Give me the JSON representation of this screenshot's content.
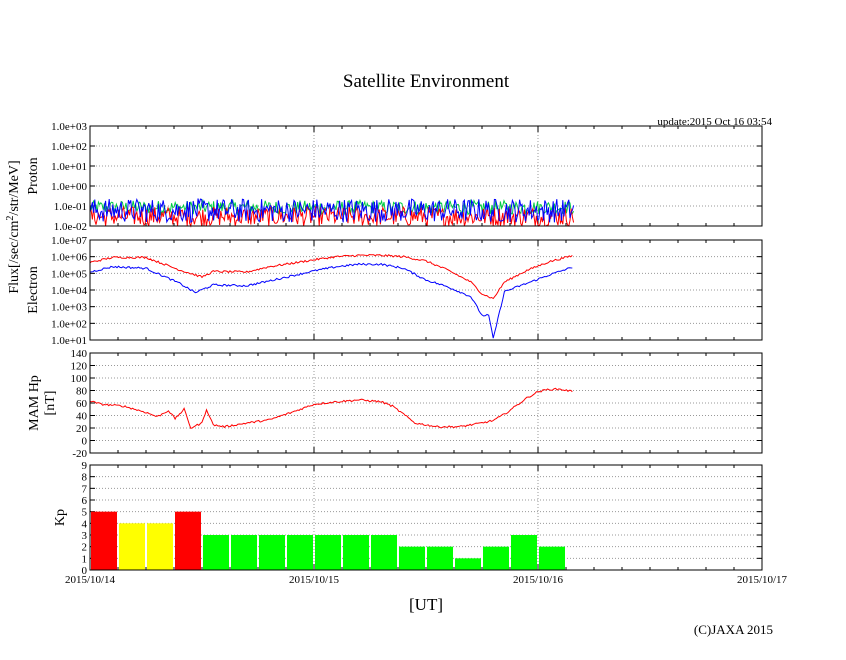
{
  "title": "Satellite Environment",
  "update_label": "update:2015 Oct 16 03:54",
  "copyright": "(C)JAXA 2015",
  "x_axis": {
    "label": "[UT]",
    "ticks": [
      "2015/10/14",
      "2015/10/15",
      "2015/10/16",
      "2015/10/17"
    ]
  },
  "shared_ylabel": {
    "flux_prefix": "Flux[/sec/cm",
    "flux_sup": "2",
    "flux_suffix": "/str/MeV]"
  },
  "colors": {
    "red": "#ff0000",
    "blue": "#0000ff",
    "green": "#00cc44",
    "yellow": "#ffff00",
    "bright_green": "#00ff00",
    "grid": "#999999"
  },
  "chart_data": [
    {
      "type": "line",
      "name": "proton",
      "ylabel": "Proton",
      "y_scale": "log",
      "ylim": [
        0.01,
        1000
      ],
      "yticks": [
        "1.0e-02",
        "1.0e-01",
        "1.0e+00",
        "1.0e+01",
        "1.0e+02",
        "1.0e+03"
      ],
      "xlim_days": [
        0,
        3
      ],
      "x_end_day": 2.16,
      "series": [
        {
          "color": "green",
          "level": 0.085,
          "spread": 0.35
        },
        {
          "color": "red",
          "level": 0.03,
          "spread": 0.5
        },
        {
          "color": "blue",
          "level": 0.06,
          "spread": 0.6
        }
      ]
    },
    {
      "type": "line",
      "name": "electron",
      "ylabel": "Electron",
      "y_scale": "log",
      "ylim": [
        10,
        10000000
      ],
      "yticks": [
        "1.0e+01",
        "1.0e+02",
        "1.0e+03",
        "1.0e+04",
        "1.0e+05",
        "1.0e+06",
        "1.0e+07"
      ],
      "xlim_days": [
        0,
        3
      ],
      "series": [
        {
          "color": "red",
          "x": [
            0,
            0.1,
            0.25,
            0.4,
            0.5,
            0.55,
            0.7,
            0.8,
            0.9,
            1.0,
            1.1,
            1.2,
            1.3,
            1.4,
            1.5,
            1.6,
            1.7,
            1.75,
            1.8,
            1.85,
            1.95,
            2.05,
            2.16
          ],
          "y": [
            450000,
            900000,
            900000,
            160000,
            60000,
            130000,
            120000,
            250000,
            400000,
            650000,
            1000000,
            1200000,
            1200000,
            1000000,
            550000,
            150000,
            30000,
            6000,
            3000,
            30000,
            150000,
            500000,
            1200000
          ]
        },
        {
          "color": "blue",
          "x": [
            0,
            0.1,
            0.25,
            0.4,
            0.47,
            0.55,
            0.7,
            0.8,
            0.9,
            1.0,
            1.1,
            1.2,
            1.3,
            1.4,
            1.5,
            1.6,
            1.7,
            1.75,
            1.78,
            1.8,
            1.85,
            1.95,
            2.05,
            2.16
          ],
          "y": [
            120000,
            250000,
            200000,
            25000,
            7000,
            20000,
            18000,
            35000,
            70000,
            140000,
            250000,
            350000,
            350000,
            200000,
            40000,
            15000,
            4000,
            300,
            300,
            12,
            8000,
            25000,
            80000,
            250000
          ]
        }
      ]
    },
    {
      "type": "line",
      "name": "mam_hp",
      "ylabel_line1": "MAM Hp",
      "ylabel_line2": "[nT]",
      "ylim": [
        -20,
        140
      ],
      "yticks": [
        "-20",
        "0",
        "20",
        "40",
        "60",
        "80",
        "100",
        "120",
        "140"
      ],
      "xlim_days": [
        0,
        3
      ],
      "series": [
        {
          "color": "red",
          "x": [
            0,
            0.05,
            0.15,
            0.25,
            0.3,
            0.35,
            0.38,
            0.42,
            0.45,
            0.5,
            0.52,
            0.55,
            0.6,
            0.7,
            0.8,
            0.9,
            1.0,
            1.1,
            1.2,
            1.3,
            1.35,
            1.4,
            1.45,
            1.55,
            1.65,
            1.75,
            1.8,
            1.85,
            1.9,
            1.95,
            2.0,
            2.05,
            2.1,
            2.16
          ],
          "y": [
            63,
            58,
            55,
            45,
            38,
            48,
            35,
            50,
            20,
            28,
            50,
            25,
            22,
            28,
            33,
            45,
            58,
            62,
            65,
            62,
            55,
            42,
            28,
            22,
            22,
            28,
            32,
            42,
            55,
            68,
            78,
            82,
            82,
            78
          ]
        }
      ]
    },
    {
      "type": "bar",
      "name": "kp",
      "ylabel": "Kp",
      "ylim": [
        0,
        9
      ],
      "yticks": [
        "0",
        "1",
        "2",
        "3",
        "4",
        "5",
        "6",
        "7",
        "8",
        "9"
      ],
      "xlim_days": [
        0,
        3
      ],
      "bin_days": 0.125,
      "values": [
        5,
        4,
        4,
        5,
        3,
        3,
        3,
        3,
        3,
        3,
        3,
        2,
        2,
        1,
        2,
        3,
        2
      ],
      "bar_colors": [
        "red",
        "yellow",
        "yellow",
        "red",
        "bright_green",
        "bright_green",
        "bright_green",
        "bright_green",
        "bright_green",
        "bright_green",
        "bright_green",
        "bright_green",
        "bright_green",
        "bright_green",
        "bright_green",
        "bright_green",
        "bright_green"
      ]
    }
  ]
}
